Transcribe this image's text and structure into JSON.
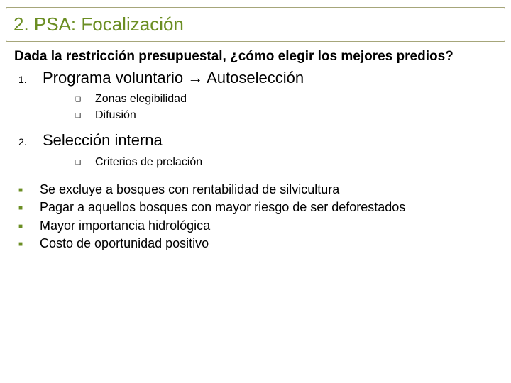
{
  "colors": {
    "accent": "#6b8e23",
    "border": "#a6a67a",
    "text": "#000000",
    "background": "#ffffff"
  },
  "typography": {
    "family": "Verdana",
    "title_size": 26,
    "intro_size": 19,
    "numbered_size": 22,
    "sub_size": 16,
    "bullet_size": 18
  },
  "title": "2. PSA: Focalización",
  "intro": "Dada la restricción presupuestal, ¿cómo elegir los mejores predios?",
  "numbered": [
    {
      "marker": "1.",
      "text": "Programa voluntario → Autoselección",
      "subs": [
        {
          "marker": "❑",
          "text": "Zonas elegibilidad"
        },
        {
          "marker": "❑",
          "text": "Difusión"
        }
      ]
    },
    {
      "marker": "2.",
      "text": "Selección interna",
      "subs": [
        {
          "marker": "❑",
          "text": "Criterios de prelación"
        }
      ]
    }
  ],
  "bullets": [
    {
      "marker": "■",
      "text": "Se excluye a bosques con rentabilidad de silvicultura"
    },
    {
      "marker": "■",
      "text": "Pagar a aquellos bosques con mayor riesgo de ser deforestados"
    },
    {
      "marker": "■",
      "text": "Mayor importancia hidrológica"
    },
    {
      "marker": "■",
      "text": "Costo de oportunidad positivo"
    }
  ]
}
